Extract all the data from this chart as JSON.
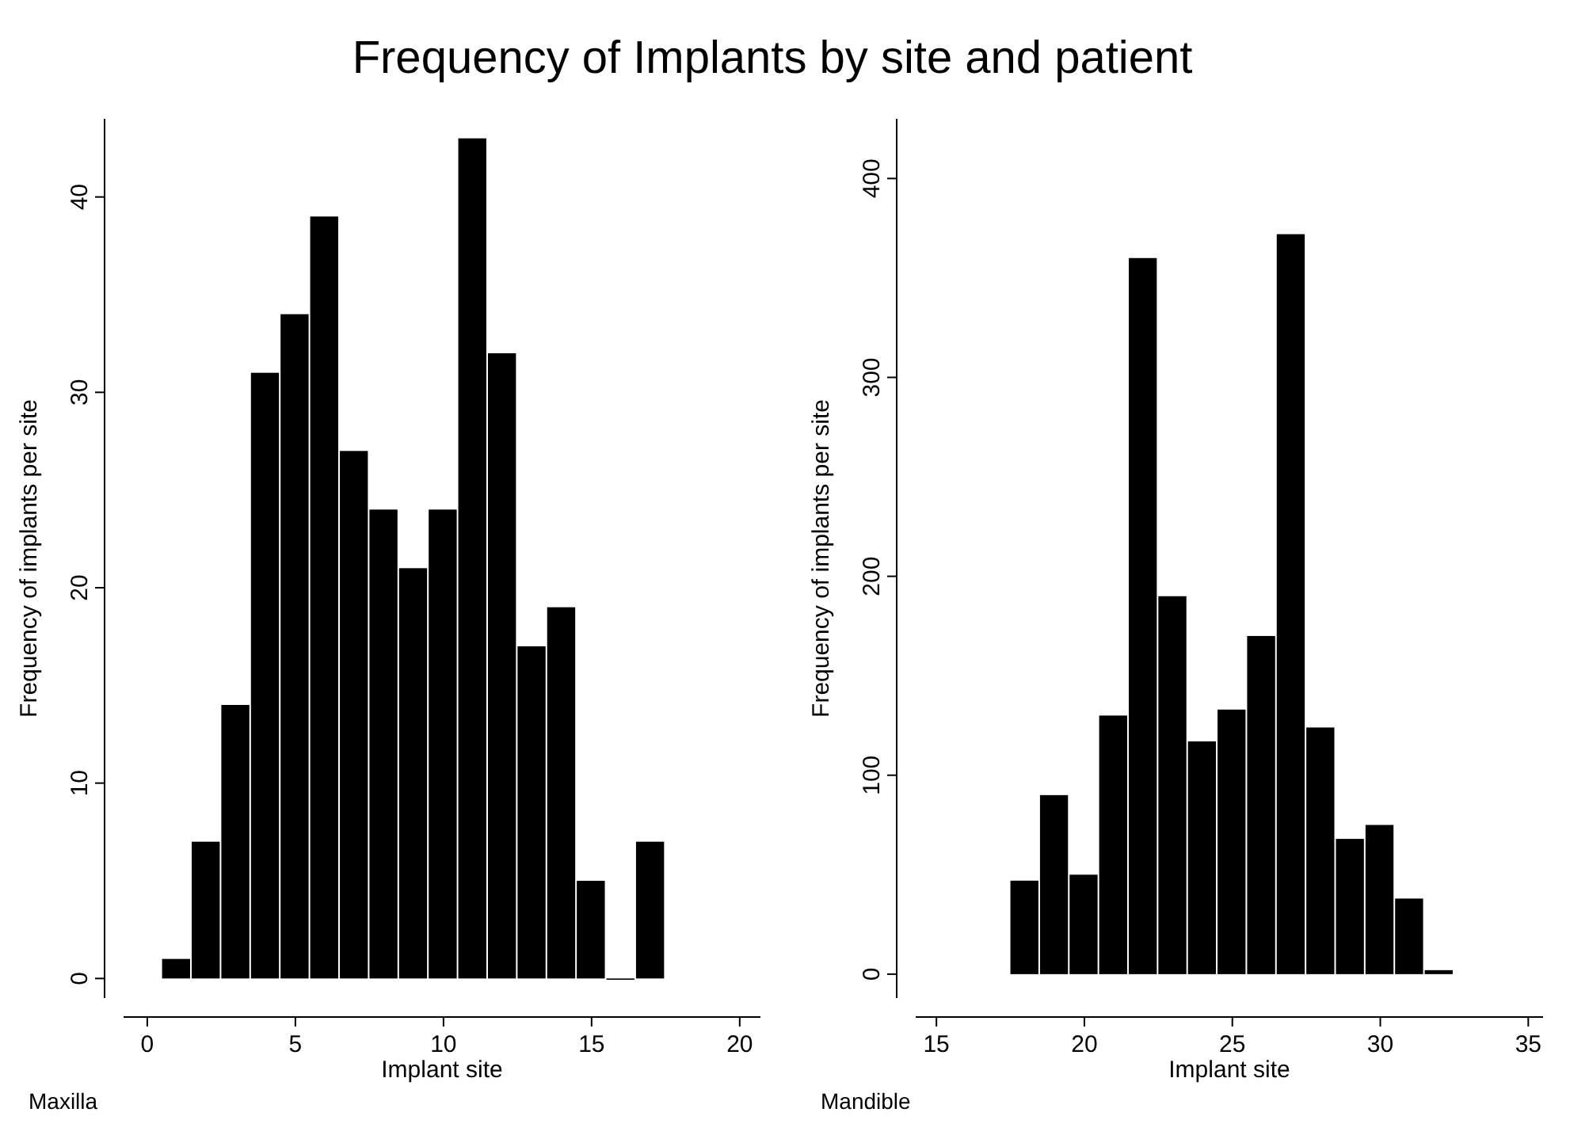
{
  "chart_data": [
    {
      "type": "histogram",
      "title": "Frequency of Implants by site and patient",
      "xlabel": "Implant site",
      "ylabel": "Frequency of implants per site",
      "bins": [
        0.5,
        1.5,
        2.5,
        3.5,
        4.5,
        5.5,
        6.5,
        7.5,
        8.5,
        9.5,
        10.5,
        11.5,
        12.5,
        13.5,
        14.5,
        15.5,
        16.5,
        17.5
      ],
      "values": [
        1,
        7,
        14,
        31,
        34,
        39,
        27,
        24,
        21,
        24,
        43,
        32,
        17,
        19,
        5,
        0,
        7
      ],
      "color": "#000000",
      "xlim": [
        -0.8,
        20.7
      ],
      "xticks": [
        0,
        5,
        10,
        15,
        20
      ],
      "ylim": [
        -1,
        44
      ],
      "yticks": [
        0,
        10,
        20,
        30,
        40
      ],
      "grid": false,
      "annotations": [
        "Maxilla"
      ]
    },
    {
      "type": "histogram",
      "xlabel": "Implant site",
      "ylabel": "Frequency of implants per site",
      "bins": [
        17.5,
        18.5,
        19.5,
        20.5,
        21.5,
        22.5,
        23.5,
        24.5,
        25.5,
        26.5,
        27.5,
        28.5,
        29.5,
        30.5,
        31.5,
        32.5
      ],
      "values": [
        47,
        90,
        50,
        130,
        360,
        190,
        117,
        133,
        170,
        372,
        124,
        68,
        75,
        38,
        2
      ],
      "color": "#000000",
      "xlim": [
        14.3,
        35.5
      ],
      "xticks": [
        15,
        20,
        25,
        30,
        35
      ],
      "ylim": [
        -12,
        430
      ],
      "yticks": [
        0,
        100,
        200,
        300,
        400
      ],
      "grid": false,
      "annotations": [
        "Mandible"
      ]
    }
  ]
}
